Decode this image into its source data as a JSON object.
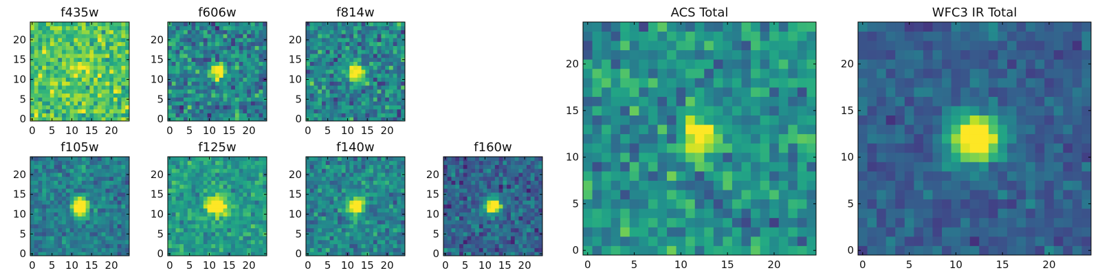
{
  "figure": {
    "description_text_free": true
  },
  "chart_data": [
    {
      "type": "heatmap",
      "title": "f435w",
      "grid_size": 25,
      "xlim": [
        0,
        24
      ],
      "ylim": [
        0,
        24
      ],
      "xticks": [
        0,
        5,
        10,
        15,
        20
      ],
      "yticks": [
        0,
        5,
        10,
        15,
        20
      ],
      "colormap": "viridis",
      "background_level": 0.72,
      "noise": 0.18,
      "source_center": [
        12,
        12
      ],
      "source_peak": 0.15,
      "source_sigma": 1.5
    },
    {
      "type": "heatmap",
      "title": "f606w",
      "grid_size": 25,
      "xlim": [
        0,
        24
      ],
      "ylim": [
        0,
        24
      ],
      "xticks": [
        0,
        5,
        10,
        15,
        20
      ],
      "yticks": [
        0,
        5,
        10,
        15,
        20
      ],
      "colormap": "viridis",
      "background_level": 0.45,
      "noise": 0.2,
      "source_center": [
        12,
        12
      ],
      "source_peak": 0.55,
      "source_sigma": 1.2
    },
    {
      "type": "heatmap",
      "title": "f814w",
      "grid_size": 25,
      "xlim": [
        0,
        24
      ],
      "ylim": [
        0,
        24
      ],
      "xticks": [
        0,
        5,
        10,
        15,
        20
      ],
      "yticks": [
        0,
        5,
        10,
        15,
        20
      ],
      "colormap": "viridis",
      "background_level": 0.45,
      "noise": 0.2,
      "source_center": [
        12,
        12
      ],
      "source_peak": 0.55,
      "source_sigma": 1.3
    },
    {
      "type": "heatmap",
      "title": "f105w",
      "grid_size": 25,
      "xlim": [
        0,
        24
      ],
      "ylim": [
        0,
        24
      ],
      "xticks": [
        0,
        5,
        10,
        15,
        20
      ],
      "yticks": [
        0,
        5,
        10,
        15,
        20
      ],
      "colormap": "viridis",
      "background_level": 0.42,
      "noise": 0.14,
      "source_center": [
        12,
        12
      ],
      "source_peak": 0.6,
      "source_sigma": 1.5
    },
    {
      "type": "heatmap",
      "title": "f125w",
      "grid_size": 25,
      "xlim": [
        0,
        24
      ],
      "ylim": [
        0,
        24
      ],
      "xticks": [
        0,
        5,
        10,
        15,
        20
      ],
      "yticks": [
        0,
        5,
        10,
        15,
        20
      ],
      "colormap": "viridis",
      "background_level": 0.55,
      "noise": 0.14,
      "source_center": [
        12,
        12
      ],
      "source_peak": 0.45,
      "source_sigma": 1.8
    },
    {
      "type": "heatmap",
      "title": "f140w",
      "grid_size": 25,
      "xlim": [
        0,
        24
      ],
      "ylim": [
        0,
        24
      ],
      "xticks": [
        0,
        5,
        10,
        15,
        20
      ],
      "yticks": [
        0,
        5,
        10,
        15,
        20
      ],
      "colormap": "viridis",
      "background_level": 0.45,
      "noise": 0.15,
      "source_center": [
        12,
        12
      ],
      "source_peak": 0.55,
      "source_sigma": 1.4
    },
    {
      "type": "heatmap",
      "title": "f160w",
      "grid_size": 25,
      "xlim": [
        0,
        24
      ],
      "ylim": [
        0,
        24
      ],
      "xticks": [
        0,
        5,
        10,
        15,
        20
      ],
      "yticks": [
        0,
        5,
        10,
        15,
        20
      ],
      "colormap": "viridis",
      "background_level": 0.32,
      "noise": 0.15,
      "source_center": [
        12,
        12
      ],
      "source_peak": 0.68,
      "source_sigma": 1.3
    },
    {
      "type": "heatmap",
      "title": "ACS Total",
      "grid_size": 25,
      "xlim": [
        0,
        24
      ],
      "ylim": [
        0,
        24
      ],
      "xticks": [
        0,
        5,
        10,
        15,
        20
      ],
      "yticks": [
        0,
        5,
        10,
        15,
        20
      ],
      "colormap": "viridis",
      "background_level": 0.5,
      "noise": 0.17,
      "source_center": [
        12,
        12
      ],
      "source_peak": 0.5,
      "source_sigma": 1.2
    },
    {
      "type": "heatmap",
      "title": "WFC3 IR Total",
      "grid_size": 25,
      "xlim": [
        0,
        24
      ],
      "ylim": [
        0,
        24
      ],
      "xticks": [
        0,
        5,
        10,
        15,
        20
      ],
      "yticks": [
        0,
        5,
        10,
        15,
        20
      ],
      "colormap": "viridis",
      "background_level": 0.3,
      "noise": 0.1,
      "source_center": [
        12,
        12
      ],
      "source_peak": 0.7,
      "source_sigma": 1.7
    }
  ]
}
